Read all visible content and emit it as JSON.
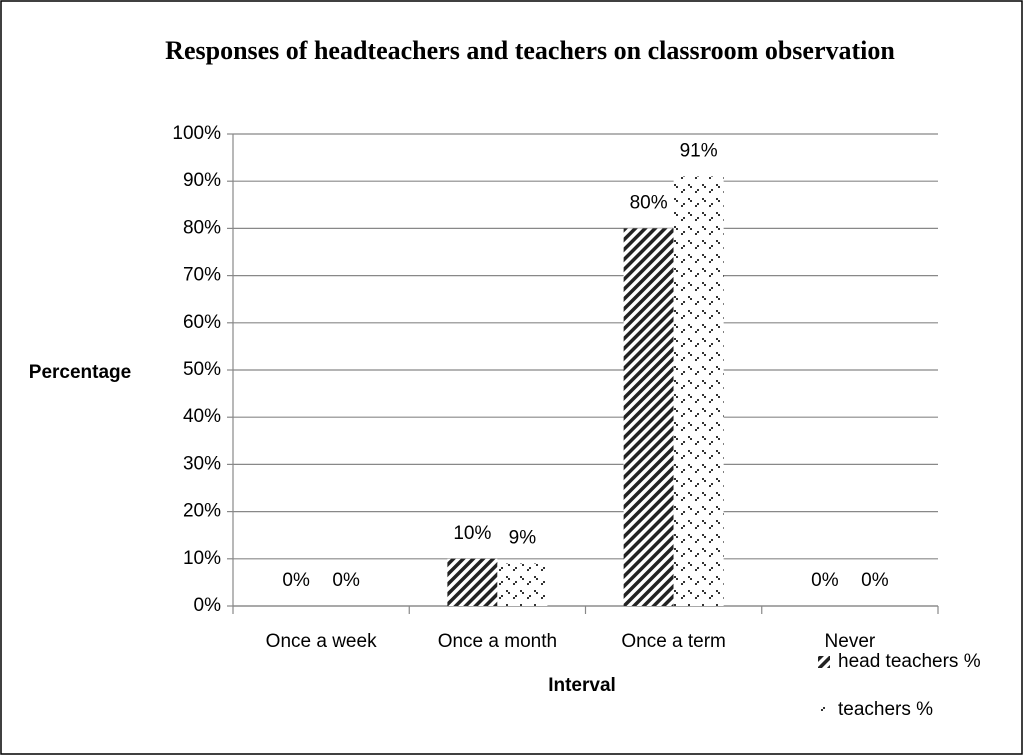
{
  "chart_data": {
    "type": "bar",
    "title": "Responses of headteachers and teachers on classroom observation",
    "x_label": "Interval",
    "y_label": "Percentage",
    "categories": [
      "Once a week",
      "Once a month",
      "Once a term",
      "Never"
    ],
    "series": [
      {
        "name": "head teachers %",
        "color": "#222222",
        "pattern": "diagonal",
        "values": [
          0,
          10,
          80,
          0
        ],
        "value_labels": [
          "0%",
          "10%",
          "80%",
          "0%"
        ]
      },
      {
        "name": "teachers  %",
        "color": "#222222",
        "pattern": "dots",
        "values": [
          0,
          9,
          91,
          0
        ],
        "value_labels": [
          "0%",
          "9%",
          "91%",
          "0%"
        ]
      }
    ],
    "ylim": [
      0,
      100
    ],
    "yticks": [
      {
        "value": 0,
        "label": "0%"
      },
      {
        "value": 10,
        "label": "10%"
      },
      {
        "value": 20,
        "label": "20%"
      },
      {
        "value": 30,
        "label": "30%"
      },
      {
        "value": 40,
        "label": "40%"
      },
      {
        "value": 50,
        "label": "50%"
      },
      {
        "value": 60,
        "label": "60%"
      },
      {
        "value": 70,
        "label": "70%"
      },
      {
        "value": 80,
        "label": "80%"
      },
      {
        "value": 90,
        "label": "90%"
      },
      {
        "value": 100,
        "label": "100%"
      }
    ],
    "grid": true,
    "legend": "bottom-right"
  }
}
